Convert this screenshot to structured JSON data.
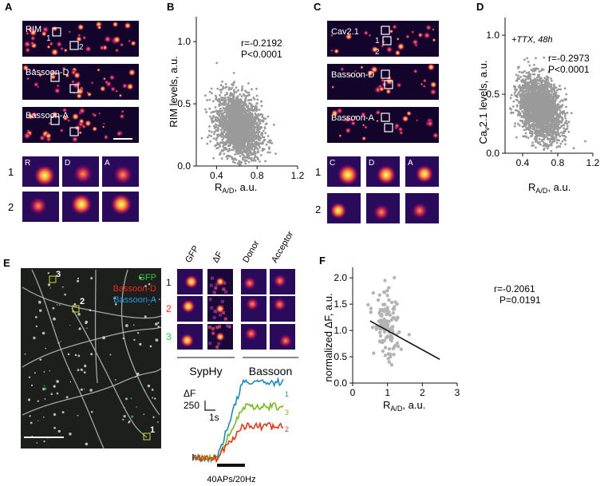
{
  "panels": {
    "A": {
      "letter": "A",
      "images": [
        "RIM",
        "Bassoon-D",
        "Bassoon-A"
      ],
      "roi_marks": [
        "1",
        "2"
      ],
      "zoom_cols": [
        "R",
        "D",
        "A"
      ],
      "zoom_rows": [
        "1",
        "2"
      ]
    },
    "B": {
      "letter": "B",
      "ylabel": "RIM levels, a.u.",
      "xlabel_main": "R",
      "xlabel_sub": "A/D",
      "xlabel_tail": ", a.u.",
      "stats_r": "r=-0.2192",
      "stats_p": "P<0.0001"
    },
    "C": {
      "letter": "C",
      "images": [
        "Cav2.1",
        "Bassoon-D",
        "Bassoon-A"
      ],
      "roi_marks": [
        "1",
        "2"
      ],
      "zoom_cols": [
        "C",
        "D",
        "A"
      ],
      "zoom_rows": [
        "1",
        "2"
      ]
    },
    "D": {
      "letter": "D",
      "condition": "+TTX, 48h",
      "ylabel_main": "Ca",
      "ylabel_sub": "v",
      "ylabel_tail": "2.1 levels, a.u.",
      "xlabel_main": "R",
      "xlabel_sub": "A/D",
      "xlabel_tail": ", a.u.",
      "stats_r": "r=-0.2973",
      "stats_p": "P<0.0001"
    },
    "E": {
      "letter": "E",
      "legend": [
        "GFP",
        "Bassoon-D",
        "Bassoon-A"
      ],
      "legend_colors": [
        "#2ecc40",
        "#e8281e",
        "#1e9be8"
      ],
      "roi_marks": [
        "3",
        "2",
        "1"
      ],
      "grid_cols": [
        "GFP",
        "ΔF",
        "Donor",
        "Acceptor"
      ],
      "grid_rows": [
        "1",
        "2",
        "3"
      ],
      "row_colors": [
        "#111111",
        "#e8281e",
        "#2ecc40"
      ],
      "group_labels": [
        "SypHy",
        "Bassoon"
      ],
      "scale_y": "ΔF",
      "scale_y_value": "250",
      "scale_x": "1s",
      "trace_labels": [
        "1",
        "3",
        "2"
      ],
      "stimulus": "40APs/20Hz"
    },
    "F": {
      "letter": "F",
      "ylabel": "normalized ΔF, a.u.",
      "xlabel_main": "R",
      "xlabel_sub": "A/D",
      "xlabel_tail": ", a.u.",
      "stats_r": "r=-0.2061",
      "stats_p": "P=0.0191"
    }
  },
  "chart_data": [
    {
      "id": "B",
      "type": "scatter",
      "xlim": [
        0.2,
        1.2
      ],
      "ylim": [
        0.0,
        1.2
      ],
      "xticks": [
        "0.4",
        "0.8",
        "1.2"
      ],
      "yticks": [
        "0.0",
        "0.5",
        "1.0"
      ],
      "xtick_values": [
        0.4,
        0.8,
        1.2
      ],
      "ytick_values": [
        0.0,
        0.5,
        1.0
      ],
      "cloud": {
        "x_mean": 0.62,
        "x_sd": 0.11,
        "y_mean": 0.32,
        "y_sd": 0.13,
        "r": -0.2192,
        "n": 2200
      },
      "color": "#9a9a9a"
    },
    {
      "id": "D",
      "type": "scatter",
      "xlim": [
        0.2,
        1.2
      ],
      "ylim": [
        0.0,
        1.15
      ],
      "xticks": [
        "0.4",
        "0.8",
        "1.2"
      ],
      "yticks": [
        "0.0",
        "0.5",
        "1.0"
      ],
      "xtick_values": [
        0.4,
        0.8,
        1.2
      ],
      "ytick_values": [
        0.0,
        0.5,
        1.0
      ],
      "cloud": {
        "x_mean": 0.6,
        "x_sd": 0.12,
        "y_mean": 0.38,
        "y_sd": 0.13,
        "r": -0.2973,
        "n": 2500
      },
      "color": "#9a9a9a"
    },
    {
      "id": "F",
      "type": "scatter",
      "xlim": [
        0,
        3
      ],
      "ylim": [
        0.0,
        2.2
      ],
      "xticks": [
        "0",
        "1",
        "2",
        "3"
      ],
      "yticks": [
        "0.0",
        "0.5",
        "1.0",
        "1.5",
        "2.0"
      ],
      "xtick_values": [
        0,
        1,
        2,
        3
      ],
      "ytick_values": [
        0.0,
        0.5,
        1.0,
        1.5,
        2.0
      ],
      "cloud": {
        "x_mean": 0.98,
        "x_sd": 0.18,
        "y_mean": 1.05,
        "y_sd": 0.32,
        "r": -0.2061,
        "n": 130
      },
      "fit": {
        "x": [
          0.5,
          2.5
        ],
        "y": [
          1.18,
          0.45
        ]
      },
      "color": "#b4b4b4"
    },
    {
      "id": "E-traces",
      "type": "line",
      "x_range": [
        0,
        1
      ],
      "baseline": 0,
      "series": [
        {
          "label": "1",
          "color": "#1f8ab8",
          "amplitude": 1.0
        },
        {
          "label": "3",
          "color": "#78b820",
          "amplitude": 0.68
        },
        {
          "label": "2",
          "color": "#d93a1c",
          "amplitude": 0.42
        }
      ]
    }
  ]
}
